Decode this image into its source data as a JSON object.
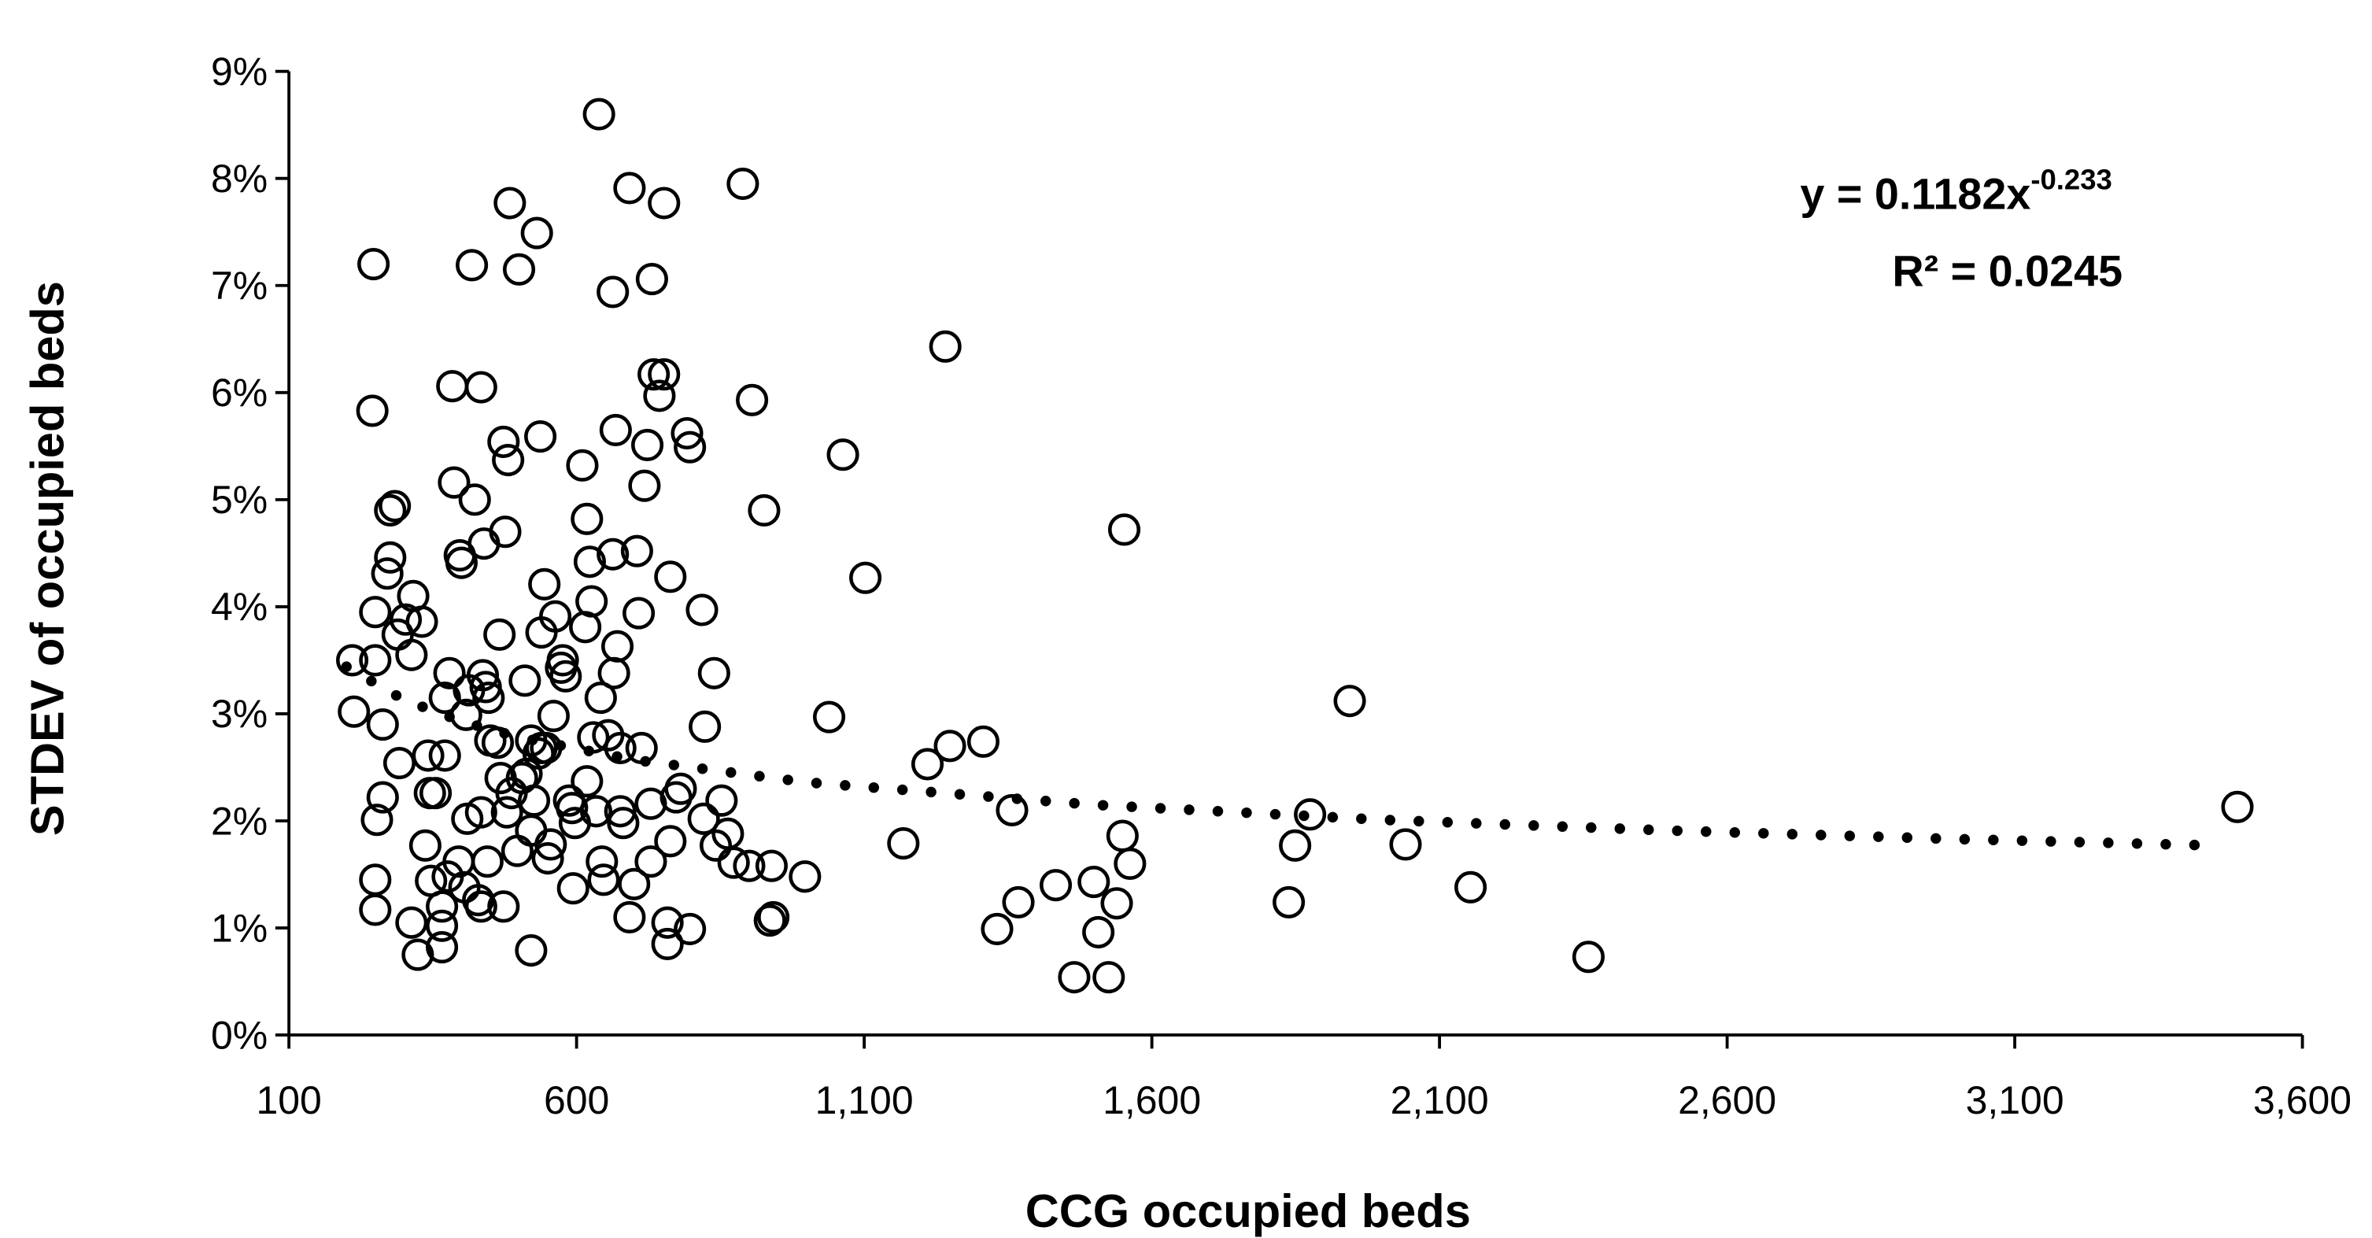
{
  "chart_data": {
    "type": "scatter",
    "x_label": "CCG occupied beds",
    "y_label": "STDEV of occupied beds",
    "xlim": [
      100,
      3600
    ],
    "ylim": [
      0,
      9
    ],
    "xticks": [
      100,
      600,
      {
        "value": 1100,
        "label": "1,100"
      },
      {
        "value": 1600,
        "label": "1,600"
      },
      {
        "value": 2100,
        "label": "2,100"
      },
      {
        "value": 2600,
        "label": "2,600"
      },
      {
        "value": 3100,
        "label": "3,100"
      },
      {
        "value": 3600,
        "label": "3,600"
      }
    ],
    "yticks": [
      {
        "value": 0,
        "label": "0%"
      },
      {
        "value": 1,
        "label": "1%"
      },
      {
        "value": 2,
        "label": "2%"
      },
      {
        "value": 3,
        "label": "3%"
      },
      {
        "value": 4,
        "label": "4%"
      },
      {
        "value": 5,
        "label": "5%"
      },
      {
        "value": 6,
        "label": "6%"
      },
      {
        "value": 7,
        "label": "7%"
      },
      {
        "value": 8,
        "label": "8%"
      },
      {
        "value": 9,
        "label": "9%"
      }
    ],
    "marker_color": "#000000",
    "x": [
      210,
      213,
      247,
      245,
      250,
      250,
      253,
      250,
      250,
      263,
      263,
      271,
      276,
      276,
      284,
      289,
      292,
      303,
      313,
      316,
      313,
      324,
      331,
      337,
      342,
      345,
      347,
      355,
      366,
      366,
      366,
      371,
      371,
      376,
      379,
      384,
      387,
      395,
      397,
      400,
      405,
      408,
      410,
      413,
      418,
      423,
      429,
      434,
      434,
      434,
      437,
      439,
      442,
      445,
      447,
      450,
      463,
      466,
      468,
      473,
      476,
      473,
      479,
      481,
      484,
      487,
      497,
      500,
      505,
      510,
      513,
      521,
      521,
      521,
      526,
      531,
      534,
      537,
      539,
      539,
      544,
      547,
      550,
      555,
      560,
      563,
      573,
      576,
      581,
      587,
      592,
      594,
      597,
      610,
      615,
      618,
      618,
      623,
      626,
      629,
      634,
      639,
      642,
      644,
      647,
      655,
      663,
      663,
      665,
      668,
      671,
      676,
      676,
      681,
      692,
      692,
      700,
      705,
      708,
      713,
      718,
      723,
      729,
      729,
      731,
      734,
      744,
      752,
      752,
      758,
      758,
      763,
      763,
      773,
      781,
      792,
      797,
      797,
      818,
      821,
      823,
      839,
      842,
      852,
      863,
      873,
      889,
      900,
      905,
      926,
      939,
      936,
      942,
      997,
      1039,
      1063,
      1102,
      1168,
      1210,
      1241,
      1249,
      1307,
      1331,
      1357,
      1368,
      1433,
      1465,
      1499,
      1507,
      1525,
      1539,
      1549,
      1552,
      1562,
      1838,
      1849,
      1875,
      1944,
      2041,
      2154,
      2359,
      3487
    ],
    "values": [
      3.5,
      3.02,
      7.2,
      5.83,
      3.95,
      3.5,
      2.01,
      1.45,
      1.17,
      2.9,
      2.22,
      4.31,
      4.9,
      4.46,
      4.94,
      3.74,
      2.54,
      3.88,
      3.55,
      4.1,
      1.05,
      0.75,
      3.86,
      1.77,
      2.61,
      2.26,
      1.44,
      2.26,
      1.2,
      1.02,
      0.82,
      3.15,
      2.61,
      1.48,
      3.38,
      6.06,
      5.16,
      1.62,
      4.48,
      4.41,
      1.38,
      2.99,
      2.02,
      3.22,
      7.19,
      5.0,
      1.26,
      1.2,
      6.05,
      2.08,
      3.36,
      4.59,
      3.25,
      1.62,
      3.15,
      2.75,
      2.73,
      3.74,
      2.4,
      5.54,
      4.7,
      1.2,
      2.08,
      5.37,
      7.77,
      2.26,
      1.72,
      7.15,
      2.4,
      3.31,
      2.44,
      0.79,
      1.91,
      2.75,
      2.19,
      7.49,
      2.63,
      5.59,
      2.68,
      3.76,
      4.21,
      2.68,
      1.65,
      1.78,
      2.98,
      3.91,
      3.43,
      3.5,
      3.35,
      2.19,
      2.12,
      1.37,
      1.98,
      5.32,
      3.81,
      4.82,
      2.37,
      4.42,
      4.05,
      2.78,
      2.09,
      8.6,
      3.15,
      1.62,
      1.45,
      2.8,
      6.94,
      4.49,
      3.38,
      5.65,
      3.63,
      2.09,
      2.68,
      1.98,
      7.91,
      1.1,
      1.41,
      4.52,
      3.94,
      2.68,
      5.13,
      5.51,
      2.16,
      1.62,
      7.06,
      6.17,
      5.97,
      6.17,
      7.77,
      1.05,
      0.85,
      1.81,
      4.28,
      2.22,
      2.3,
      5.62,
      5.49,
      0.99,
      3.97,
      2.02,
      2.88,
      3.38,
      1.77,
      2.19,
      1.88,
      1.61,
      7.95,
      1.58,
      5.93,
      4.9,
      1.58,
      1.07,
      1.1,
      1.48,
      2.97,
      5.42,
      4.27,
      1.79,
      2.53,
      6.43,
      2.7,
      2.74,
      0.99,
      2.1,
      1.24,
      1.4,
      0.54,
      1.43,
      0.96,
      0.54,
      1.23,
      1.86,
      4.72,
      1.6,
      1.24,
      1.77,
      2.06,
      3.12,
      1.78,
      1.38,
      0.73,
      2.13
    ],
    "trendline": {
      "color": "#000000",
      "x": [
        200,
        300,
        400,
        500,
        700,
        1000,
        1500,
        2000,
        2500,
        3000,
        3450
      ],
      "values": [
        3.44,
        3.13,
        2.93,
        2.78,
        2.57,
        2.36,
        2.15,
        2.01,
        1.91,
        1.83,
        1.77
      ]
    },
    "equation_base": "y = 0.1182x",
    "equation_exponent": "-0.233",
    "r_squared": "R² = 0.0245"
  }
}
